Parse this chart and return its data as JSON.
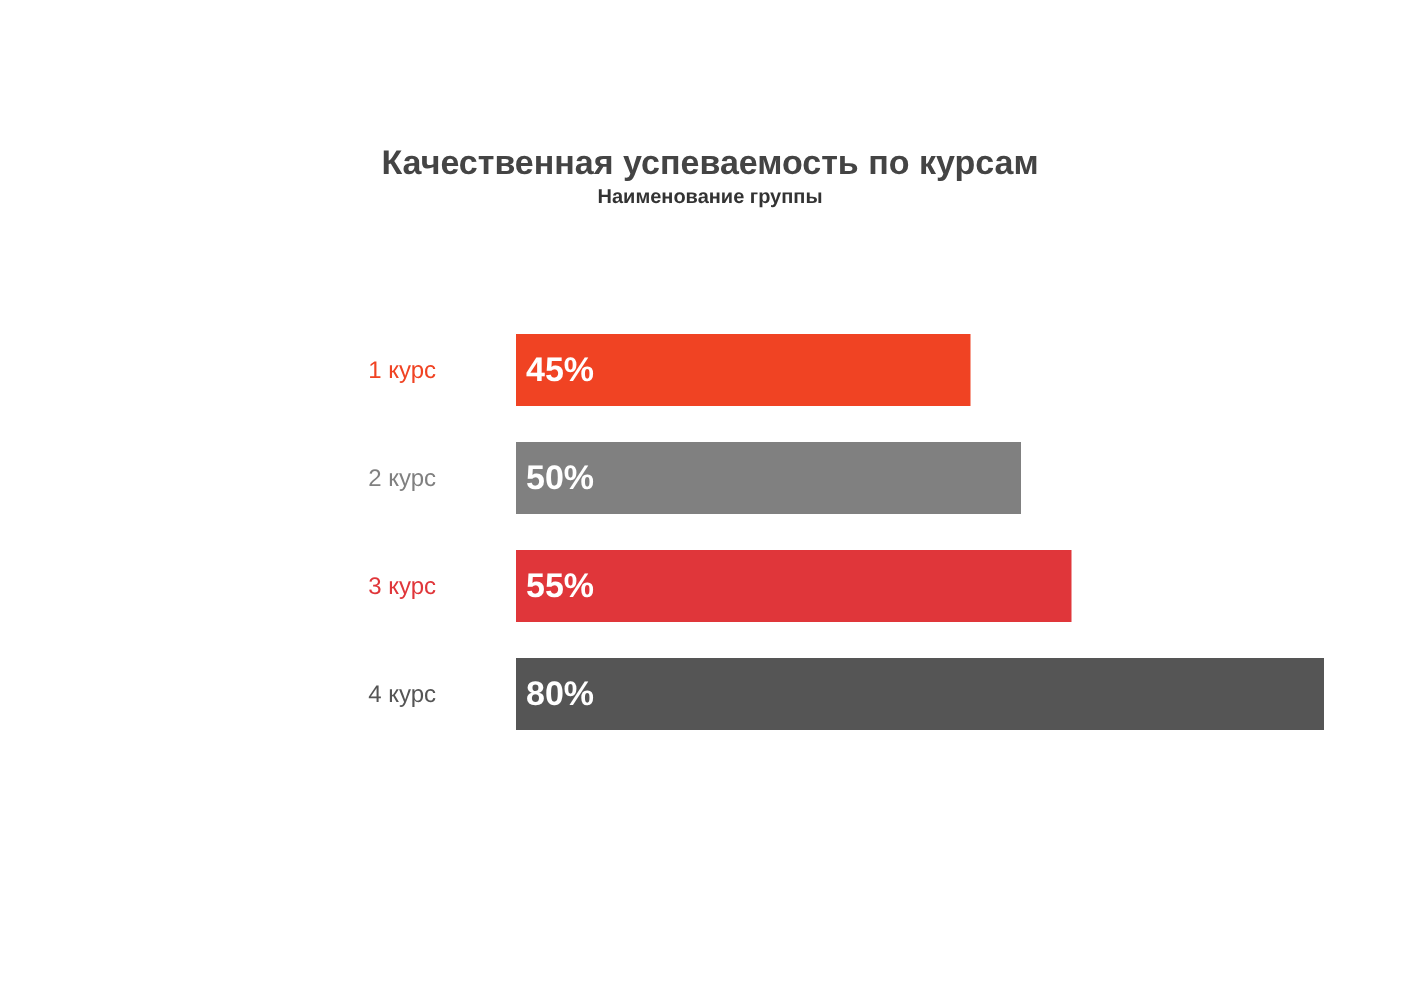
{
  "chart_data": {
    "type": "bar",
    "orientation": "horizontal",
    "title": "Качественная успеваемость по курсам",
    "subtitle": "Наименование группы",
    "categories": [
      "1 курс",
      "2 курс",
      "3 курс",
      "4 курс"
    ],
    "values": [
      45,
      50,
      55,
      80
    ],
    "value_labels": [
      "45%",
      "50%",
      "55%",
      "80%"
    ],
    "colors": [
      "#f04323",
      "#808080",
      "#e0363a",
      "#555555"
    ],
    "tick_labels": "y"
  }
}
